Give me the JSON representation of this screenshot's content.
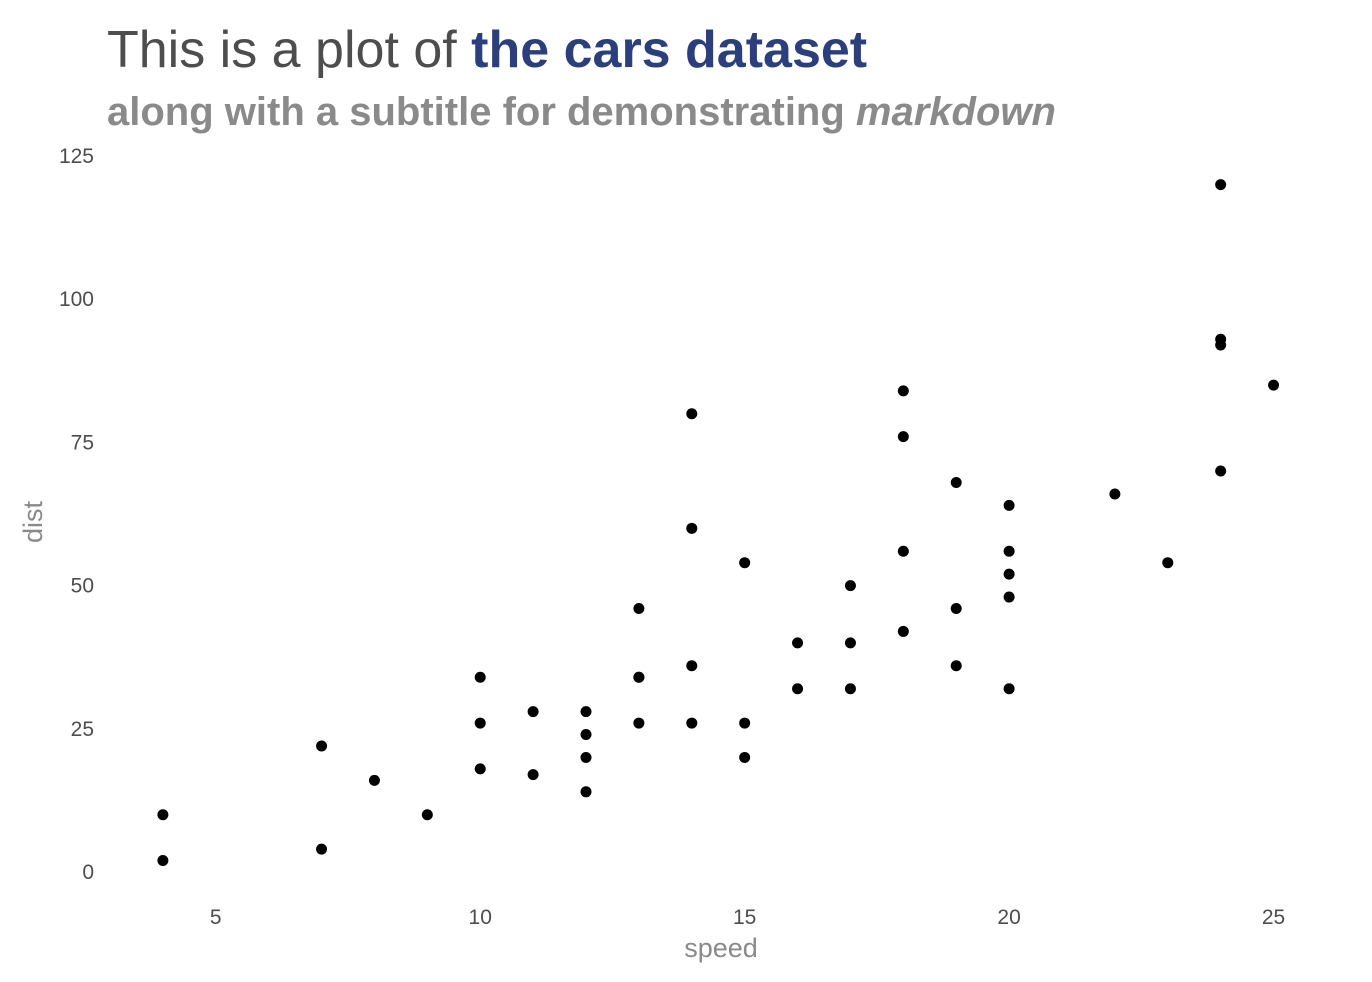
{
  "title": {
    "prefix": "This is a plot of ",
    "highlight": "the cars dataset",
    "highlight_color": "#2b3f7c"
  },
  "subtitle": {
    "prefix": "along with a subtitle for demonstrating ",
    "emphasis": "markdown"
  },
  "chart_data": {
    "type": "scatter",
    "xlabel": "speed",
    "ylabel": "dist",
    "xlim": [
      3,
      25.5
    ],
    "ylim": [
      0,
      125
    ],
    "xticks": [
      5,
      10,
      15,
      20,
      25
    ],
    "yticks": [
      0,
      25,
      50,
      75,
      100,
      125
    ],
    "grid": false,
    "point_color": "#000000",
    "points": [
      {
        "x": 4,
        "y": 2
      },
      {
        "x": 4,
        "y": 10
      },
      {
        "x": 7,
        "y": 4
      },
      {
        "x": 7,
        "y": 22
      },
      {
        "x": 8,
        "y": 16
      },
      {
        "x": 9,
        "y": 10
      },
      {
        "x": 10,
        "y": 18
      },
      {
        "x": 10,
        "y": 26
      },
      {
        "x": 10,
        "y": 34
      },
      {
        "x": 11,
        "y": 17
      },
      {
        "x": 11,
        "y": 28
      },
      {
        "x": 12,
        "y": 14
      },
      {
        "x": 12,
        "y": 20
      },
      {
        "x": 12,
        "y": 24
      },
      {
        "x": 12,
        "y": 28
      },
      {
        "x": 13,
        "y": 26
      },
      {
        "x": 13,
        "y": 34
      },
      {
        "x": 13,
        "y": 34
      },
      {
        "x": 13,
        "y": 46
      },
      {
        "x": 14,
        "y": 26
      },
      {
        "x": 14,
        "y": 36
      },
      {
        "x": 14,
        "y": 60
      },
      {
        "x": 14,
        "y": 80
      },
      {
        "x": 15,
        "y": 20
      },
      {
        "x": 15,
        "y": 26
      },
      {
        "x": 15,
        "y": 54
      },
      {
        "x": 16,
        "y": 32
      },
      {
        "x": 16,
        "y": 40
      },
      {
        "x": 17,
        "y": 32
      },
      {
        "x": 17,
        "y": 40
      },
      {
        "x": 17,
        "y": 50
      },
      {
        "x": 18,
        "y": 42
      },
      {
        "x": 18,
        "y": 56
      },
      {
        "x": 18,
        "y": 76
      },
      {
        "x": 18,
        "y": 84
      },
      {
        "x": 19,
        "y": 36
      },
      {
        "x": 19,
        "y": 46
      },
      {
        "x": 19,
        "y": 68
      },
      {
        "x": 20,
        "y": 32
      },
      {
        "x": 20,
        "y": 48
      },
      {
        "x": 20,
        "y": 52
      },
      {
        "x": 20,
        "y": 56
      },
      {
        "x": 20,
        "y": 64
      },
      {
        "x": 22,
        "y": 66
      },
      {
        "x": 23,
        "y": 54
      },
      {
        "x": 24,
        "y": 70
      },
      {
        "x": 24,
        "y": 92
      },
      {
        "x": 24,
        "y": 93
      },
      {
        "x": 24,
        "y": 120
      },
      {
        "x": 25,
        "y": 85
      }
    ]
  }
}
